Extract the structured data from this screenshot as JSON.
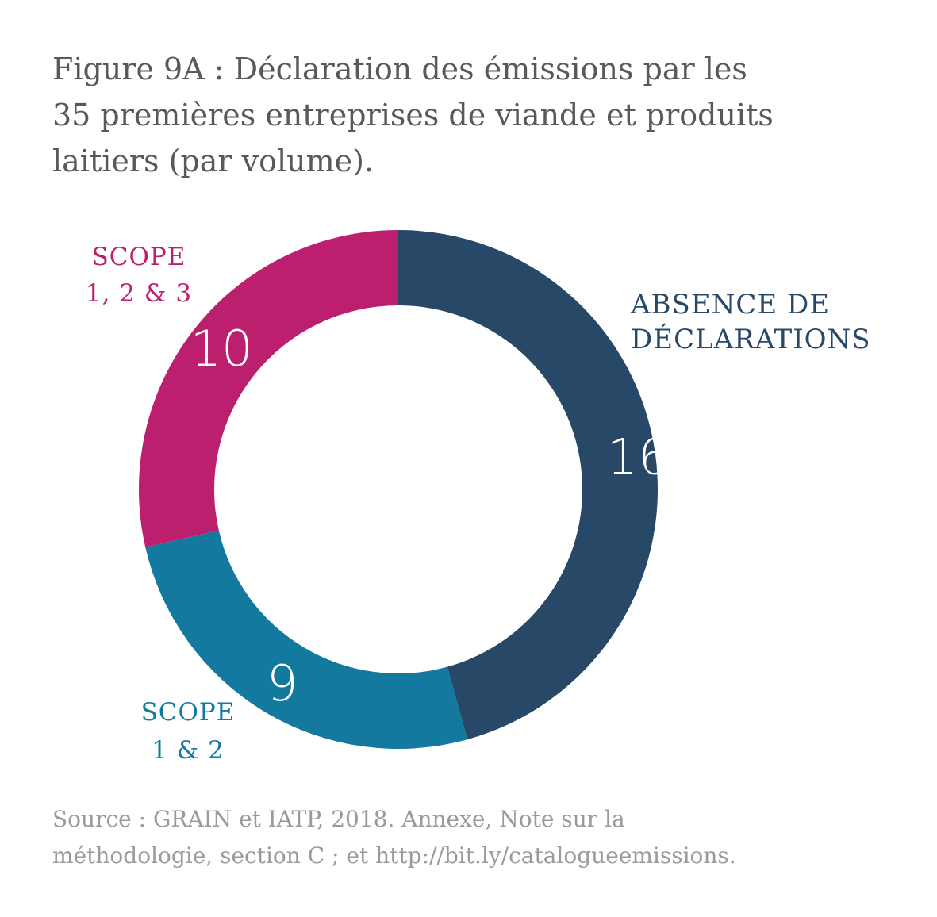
{
  "title_lines": [
    "Figure 9A : Déclaration des émissions par les",
    "35 premières entreprises de viande et produits",
    "laitiers (par volume)."
  ],
  "source_lines": [
    "Source : GRAIN et IATP, 2018. Annexe, Note sur la",
    "méthodologie, section C ; et http://bit.ly/catalogueemissions."
  ],
  "chart_data": {
    "type": "pie",
    "title": "Figure 9A : Déclaration des émissions par les 35 premières entreprises de viande et produits laitiers (par volume).",
    "style": "donut",
    "slices": [
      {
        "label": [
          "ABSENCE DE",
          "DÉCLARATIONS"
        ],
        "value": 16,
        "color": "#284868"
      },
      {
        "label": [
          "SCOPE",
          "1 & 2"
        ],
        "value": 9,
        "color": "#13799f"
      },
      {
        "label": [
          "SCOPE",
          "1, 2 & 3"
        ],
        "value": 10,
        "color": "#bc1f6e"
      }
    ]
  }
}
